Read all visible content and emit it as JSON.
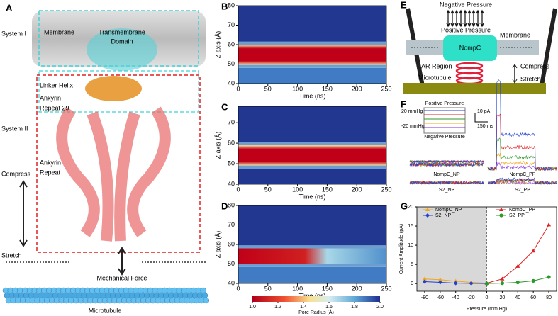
{
  "panel_a": {
    "label": "A",
    "system_1": "System I",
    "membrane": "Membrane",
    "transmembrane_domain": [
      "Transmembrane",
      "Domain"
    ],
    "linker_helix": "Linker Helix",
    "ankyrin_repeat_29": [
      "Ankyrin",
      "Repeat 29"
    ],
    "system_2": "System II",
    "ankyrin_repeat": [
      "Ankyrin",
      "Repeat"
    ],
    "compress": "Compress",
    "stretch": "Stretch",
    "mechanical_force": "Mechanical Force",
    "microtubule": "Microtubule"
  },
  "heatmaps": [
    {
      "label": "B",
      "ylabel": "Z axis (Å)",
      "xlabel": "Time (ns)",
      "xlim": [
        0,
        250
      ],
      "xticks": [
        0,
        50,
        100,
        150,
        200,
        250
      ],
      "ylim": [
        40,
        80
      ],
      "yticks": [
        40,
        50,
        60,
        70,
        80
      ]
    },
    {
      "label": "C",
      "ylabel": "Z axis (Å)",
      "xlabel": "Time (ns)",
      "xlim": [
        0,
        250
      ],
      "xticks": [
        0,
        50,
        100,
        150,
        200,
        250
      ],
      "ylim": [
        40,
        78
      ],
      "yticks": [
        40,
        50,
        60,
        70
      ]
    },
    {
      "label": "D",
      "ylabel": "Z axis (Å)",
      "xlabel": "Time (ns)",
      "xlim": [
        0,
        250
      ],
      "xticks": [
        0,
        50,
        100,
        150,
        200,
        250
      ],
      "ylim": [
        40,
        80
      ],
      "yticks": [
        40,
        50,
        60,
        70,
        80
      ]
    }
  ],
  "colorbar": {
    "label": "Pore Radius (Å)",
    "lim": [
      1.0,
      2.0
    ],
    "ticks": [
      {
        "value": 1.0,
        "label": "1.0"
      },
      1.2,
      1.4,
      1.6,
      1.8,
      {
        "value": 2.0,
        "label": "2.0"
      }
    ]
  },
  "panel_e": {
    "label": "E",
    "negative_pressure": "Negative Pressure",
    "positive_pressure": "Positive Pressure",
    "membrane": "Membrane",
    "nompc": "NompC",
    "ar_region": "AR Region",
    "microtubule": "Microtubule",
    "compress": "Compress",
    "stretch": "Stretch"
  },
  "panel_f": {
    "label": "F",
    "positive_pressure": "Positive Pressure",
    "plus20": "20 mmHg",
    "minus20": "-20 mmHg",
    "negative_pressure": "Negative Pressure",
    "scale_current": "10 pA",
    "scale_time": "150 ms",
    "traces": [
      "NompC_NP",
      "S2_NP",
      "NompC_PP",
      "S2_PP"
    ]
  },
  "chart_data": {
    "type": "line",
    "label": "G",
    "xlabel": "Pressure (mm Hg)",
    "ylabel": "Current Amplitude (pA)",
    "x": [
      -80,
      -60,
      -40,
      -20,
      0,
      20,
      40,
      60,
      80
    ],
    "xlim": [
      -90,
      90
    ],
    "xticks": [
      -80,
      -60,
      -40,
      -20,
      0,
      20,
      40,
      60,
      80
    ],
    "ylim": [
      -2,
      20
    ],
    "yticks": [
      0,
      5,
      10,
      15,
      20
    ],
    "series": [
      {
        "name": "NompC_NP",
        "color": "#f2a516",
        "marker": "triangle",
        "values": [
          1.2,
          1.0,
          0.6,
          0.3,
          0.1,
          null,
          null,
          null,
          null
        ]
      },
      {
        "name": "S2_NP",
        "color": "#1f3fd6",
        "marker": "diamond",
        "values": [
          0.5,
          0.3,
          0.1,
          0.05,
          0.0,
          null,
          null,
          null,
          null
        ]
      },
      {
        "name": "NompC_PP",
        "color": "#e02020",
        "marker": "triangle",
        "values": [
          null,
          null,
          null,
          null,
          0.1,
          1.2,
          4.5,
          8.5,
          15.3
        ]
      },
      {
        "name": "S2_PP",
        "color": "#2a9a2a",
        "marker": "circle",
        "values": [
          null,
          null,
          null,
          null,
          0.0,
          0.1,
          0.3,
          0.7,
          1.7
        ]
      }
    ]
  }
}
